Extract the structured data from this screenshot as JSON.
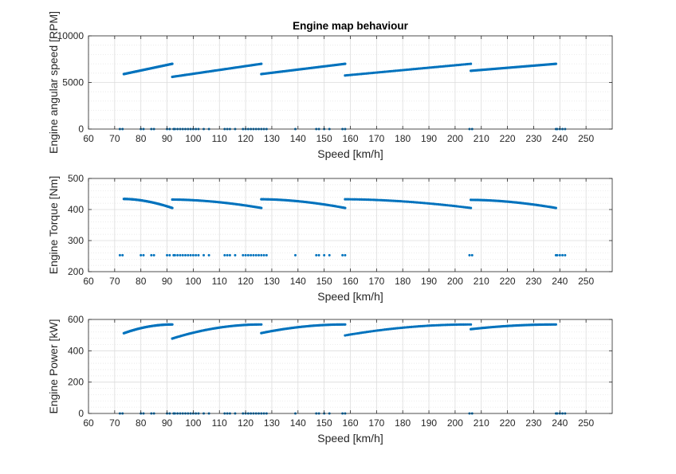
{
  "colors": {
    "series": "#0072BD",
    "axis": "#262626",
    "grid": "#dcdcdc"
  },
  "chart_data": [
    {
      "type": "scatter",
      "title": "Engine map behaviour",
      "xlabel": "Speed [km/h]",
      "ylabel": "Engine angular speed [RPM]",
      "xlim": [
        60,
        260
      ],
      "ylim": [
        0,
        10000
      ],
      "xticks": [
        60,
        70,
        80,
        90,
        100,
        110,
        120,
        130,
        140,
        150,
        160,
        170,
        180,
        190,
        200,
        210,
        220,
        230,
        240,
        250
      ],
      "yticks": [
        0,
        5000,
        10000
      ],
      "ytick_labels": [
        "0",
        "5000",
        "10000"
      ],
      "grid": true,
      "curves": [
        {
          "x0": 73.5,
          "y0": 5900,
          "x1": 92,
          "y1": 7000
        },
        {
          "x0": 92,
          "y0": 5600,
          "x1": 126,
          "y1": 7000
        },
        {
          "x0": 126,
          "y0": 5900,
          "x1": 158,
          "y1": 7000
        },
        {
          "x0": 158,
          "y0": 5750,
          "x1": 206,
          "y1": 7000
        },
        {
          "x0": 206,
          "y0": 6250,
          "x1": 238.5,
          "y1": 7000
        }
      ],
      "baseline_y": 0,
      "baseline_x": [
        72,
        73,
        80,
        81,
        84,
        85,
        90,
        91,
        92.5,
        93,
        94,
        95,
        96,
        97,
        98,
        99,
        100,
        101,
        102,
        104,
        106,
        112,
        113,
        114,
        116,
        119,
        120,
        121,
        122,
        123,
        124,
        125,
        126,
        127,
        128,
        139,
        147,
        148,
        150,
        152,
        157,
        158,
        205.5,
        206.5,
        238.5,
        239,
        240,
        241,
        242
      ]
    },
    {
      "type": "scatter",
      "title": "",
      "xlabel": "Speed [km/h]",
      "ylabel": "Engine Torque [Nm]",
      "xlim": [
        60,
        260
      ],
      "ylim": [
        200,
        500
      ],
      "xticks": [
        60,
        70,
        80,
        90,
        100,
        110,
        120,
        130,
        140,
        150,
        160,
        170,
        180,
        190,
        200,
        210,
        220,
        230,
        240,
        250
      ],
      "yticks": [
        200,
        300,
        400,
        500
      ],
      "ytick_labels": [
        "200",
        "300",
        "400",
        "500"
      ],
      "grid": true,
      "curves": [
        {
          "x0": 73.5,
          "y0": 434,
          "x1": 92,
          "y1": 405
        },
        {
          "x0": 92,
          "y0": 432,
          "x1": 126,
          "y1": 405
        },
        {
          "x0": 126,
          "y0": 433,
          "x1": 158,
          "y1": 405
        },
        {
          "x0": 158,
          "y0": 433,
          "x1": 206,
          "y1": 405
        },
        {
          "x0": 206,
          "y0": 431,
          "x1": 238.5,
          "y1": 405
        }
      ],
      "baseline_y": 253,
      "baseline_x": [
        72,
        73,
        80,
        81,
        84,
        85,
        90,
        91,
        92.5,
        93,
        94,
        95,
        96,
        97,
        98,
        99,
        100,
        101,
        102,
        104,
        106,
        112,
        113,
        114,
        116,
        119,
        120,
        121,
        122,
        123,
        124,
        125,
        126,
        127,
        128,
        139,
        147,
        148,
        150,
        152,
        157,
        158,
        205.5,
        206.5,
        238.5,
        239,
        240,
        241,
        242
      ]
    },
    {
      "type": "scatter",
      "title": "",
      "xlabel": "Speed [km/h]",
      "ylabel": "Engine Power [kW]",
      "xlim": [
        60,
        260
      ],
      "ylim": [
        0,
        600
      ],
      "xticks": [
        60,
        70,
        80,
        90,
        100,
        110,
        120,
        130,
        140,
        150,
        160,
        170,
        180,
        190,
        200,
        210,
        220,
        230,
        240,
        250
      ],
      "yticks": [
        0,
        200,
        400,
        600
      ],
      "ytick_labels": [
        "0",
        "200",
        "400",
        "600"
      ],
      "grid": true,
      "curves": [
        {
          "x0": 73.5,
          "y0": 512,
          "x1": 92,
          "y1": 568
        },
        {
          "x0": 92,
          "y0": 478,
          "x1": 126,
          "y1": 568
        },
        {
          "x0": 126,
          "y0": 513,
          "x1": 158,
          "y1": 568
        },
        {
          "x0": 158,
          "y0": 498,
          "x1": 206,
          "y1": 568
        },
        {
          "x0": 206,
          "y0": 538,
          "x1": 238.5,
          "y1": 568
        }
      ],
      "baseline_y": 0,
      "baseline_x": [
        72,
        73,
        80,
        81,
        84,
        85,
        90,
        91,
        92.5,
        93,
        94,
        95,
        96,
        97,
        98,
        99,
        100,
        101,
        102,
        104,
        106,
        112,
        113,
        114,
        116,
        119,
        120,
        121,
        122,
        123,
        124,
        125,
        126,
        127,
        128,
        139,
        147,
        148,
        150,
        152,
        157,
        158,
        205.5,
        206.5,
        238.5,
        239,
        240,
        241,
        242
      ]
    }
  ]
}
